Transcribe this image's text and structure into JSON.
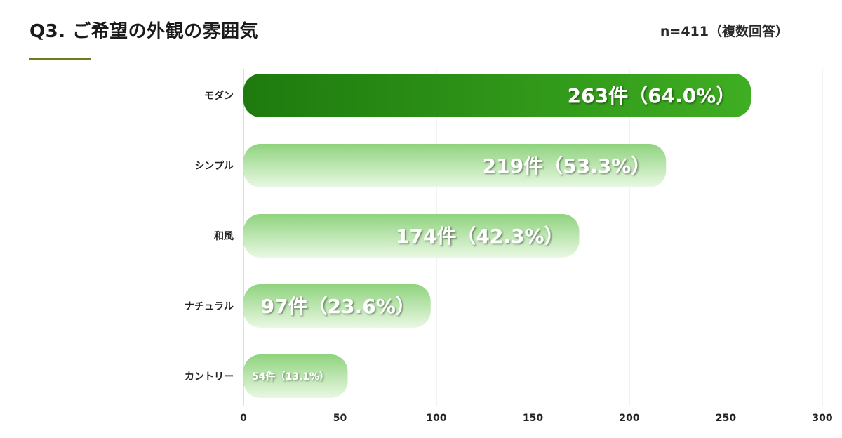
{
  "header": {
    "title": "Q3. ご希望の外観の雰囲気",
    "sample_size": "n=411（複数回答）"
  },
  "colors": {
    "accent_line": "#6b7f1a",
    "top_bar_dark": "#1e7a0e",
    "top_bar_light": "#3fae22",
    "bar_light_top": "#8fd37e",
    "bar_light_bottom": "#e9f8e3",
    "grid": "#e3e6ea"
  },
  "chart_data": {
    "type": "bar",
    "orientation": "horizontal",
    "title": "Q3. ご希望の外観の雰囲気",
    "categories": [
      "モダン",
      "シンプル",
      "和風",
      "ナチュラル",
      "カントリー"
    ],
    "values": [
      263,
      219,
      174,
      97,
      54
    ],
    "data_labels": [
      "263件（64.0%）",
      "219件（53.3%）",
      "174件（42.3%）",
      "97件（23.6%）",
      "54件（13.1%）"
    ],
    "xlim": [
      0,
      300
    ],
    "xticks": [
      0,
      50,
      100,
      150,
      200,
      250,
      300
    ],
    "grid": true,
    "highlight_index": 0
  }
}
